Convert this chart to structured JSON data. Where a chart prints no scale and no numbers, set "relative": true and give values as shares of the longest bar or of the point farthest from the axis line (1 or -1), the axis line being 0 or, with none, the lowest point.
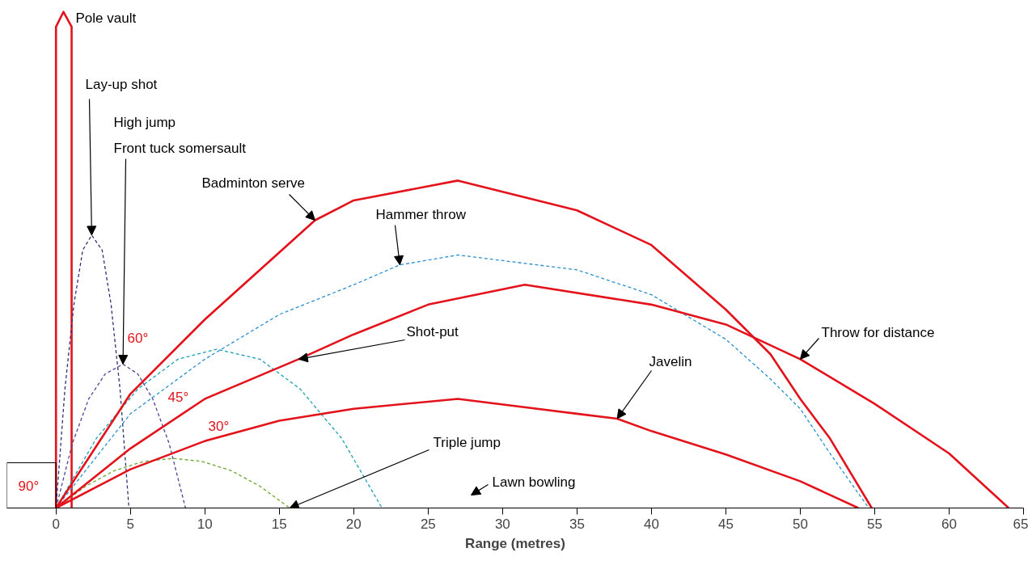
{
  "chart_data": {
    "type": "line",
    "relative": true,
    "xlabel": "Range (metres)",
    "xlim": [
      -3.3,
      65
    ],
    "xticks": [
      0,
      5,
      10,
      15,
      20,
      25,
      30,
      35,
      40,
      45,
      50,
      55,
      60,
      65
    ],
    "grid": false,
    "marker": "none",
    "series": [
      {
        "color": "#e3121b",
        "line_style": "solid",
        "x": [
          0,
          0,
          0.5,
          1.05,
          1.05
        ],
        "values": [
          0,
          0.97,
          1.0,
          0.97,
          0
        ]
      },
      {
        "color": "#2e3175",
        "line_style": "dashed",
        "x": [
          0,
          0.6,
          1.2,
          1.8,
          2.4,
          3.1,
          3.7,
          4.3,
          4.9
        ],
        "values": [
          0,
          0.24,
          0.41,
          0.52,
          0.55,
          0.52,
          0.41,
          0.24,
          0
        ]
      },
      {
        "color": "#4b4596",
        "line_style": "dashed",
        "x": [
          0,
          1.1,
          2.2,
          3.3,
          4.5,
          5.5,
          6.5,
          7.6,
          8.7
        ],
        "values": [
          0,
          0.13,
          0.22,
          0.27,
          0.29,
          0.27,
          0.22,
          0.13,
          0
        ]
      },
      {
        "color": "#2a8fcf",
        "line_style": "dashed",
        "x": [
          0,
          5,
          10,
          15,
          20,
          23.1,
          27,
          35,
          40,
          45,
          48,
          50,
          52,
          54.6
        ],
        "values": [
          0,
          0.19,
          0.3,
          0.39,
          0.45,
          0.49,
          0.51,
          0.48,
          0.43,
          0.34,
          0.26,
          0.2,
          0.11,
          0
        ]
      },
      {
        "color": "#1aa0b4",
        "line_style": "dashed",
        "x": [
          0,
          2.7,
          5.5,
          8.2,
          10.8,
          13.7,
          16.4,
          19.2,
          21.9
        ],
        "values": [
          0,
          0.14,
          0.24,
          0.3,
          0.32,
          0.3,
          0.24,
          0.14,
          0
        ]
      },
      {
        "color": "#6aa62e",
        "line_style": "dashed",
        "x": [
          0,
          2,
          3.9,
          5.9,
          7.9,
          9.8,
          11.8,
          13.7,
          15.7
        ],
        "values": [
          0,
          0.044,
          0.075,
          0.094,
          0.1,
          0.094,
          0.075,
          0.044,
          0
        ]
      },
      {
        "color": "#e3121b",
        "line_style": "solid",
        "x": [
          0,
          5,
          10,
          17.4,
          20,
          27,
          35,
          40,
          45,
          48,
          50,
          52,
          54.8
        ],
        "values": [
          0,
          0.23,
          0.38,
          0.58,
          0.62,
          0.66,
          0.6,
          0.53,
          0.4,
          0.31,
          0.22,
          0.14,
          0
        ]
      },
      {
        "color": "#e3121b",
        "line_style": "solid",
        "x": [
          0,
          5,
          10,
          16.3,
          20,
          25,
          31.5,
          40,
          45,
          50,
          55,
          60,
          64
        ],
        "values": [
          0,
          0.12,
          0.22,
          0.3,
          0.35,
          0.41,
          0.45,
          0.41,
          0.37,
          0.3,
          0.21,
          0.11,
          0
        ]
      },
      {
        "color": "#e3121b",
        "line_style": "solid",
        "x": [
          0,
          5,
          10,
          15,
          20,
          27,
          35,
          37.7,
          40,
          45,
          50,
          53.9
        ],
        "values": [
          0,
          0.078,
          0.135,
          0.176,
          0.2,
          0.22,
          0.19,
          0.18,
          0.155,
          0.108,
          0.054,
          0
        ]
      }
    ],
    "annotations": [
      "Pole vault",
      "Lay-up shot",
      "High jump",
      "Front tuck somersault",
      "Badminton serve",
      "Hammer throw",
      "Shot-put",
      "Throw for distance",
      "Javelin",
      "Triple jump",
      "Lawn bowling",
      "90°",
      "60°",
      "45°",
      "30°"
    ]
  }
}
